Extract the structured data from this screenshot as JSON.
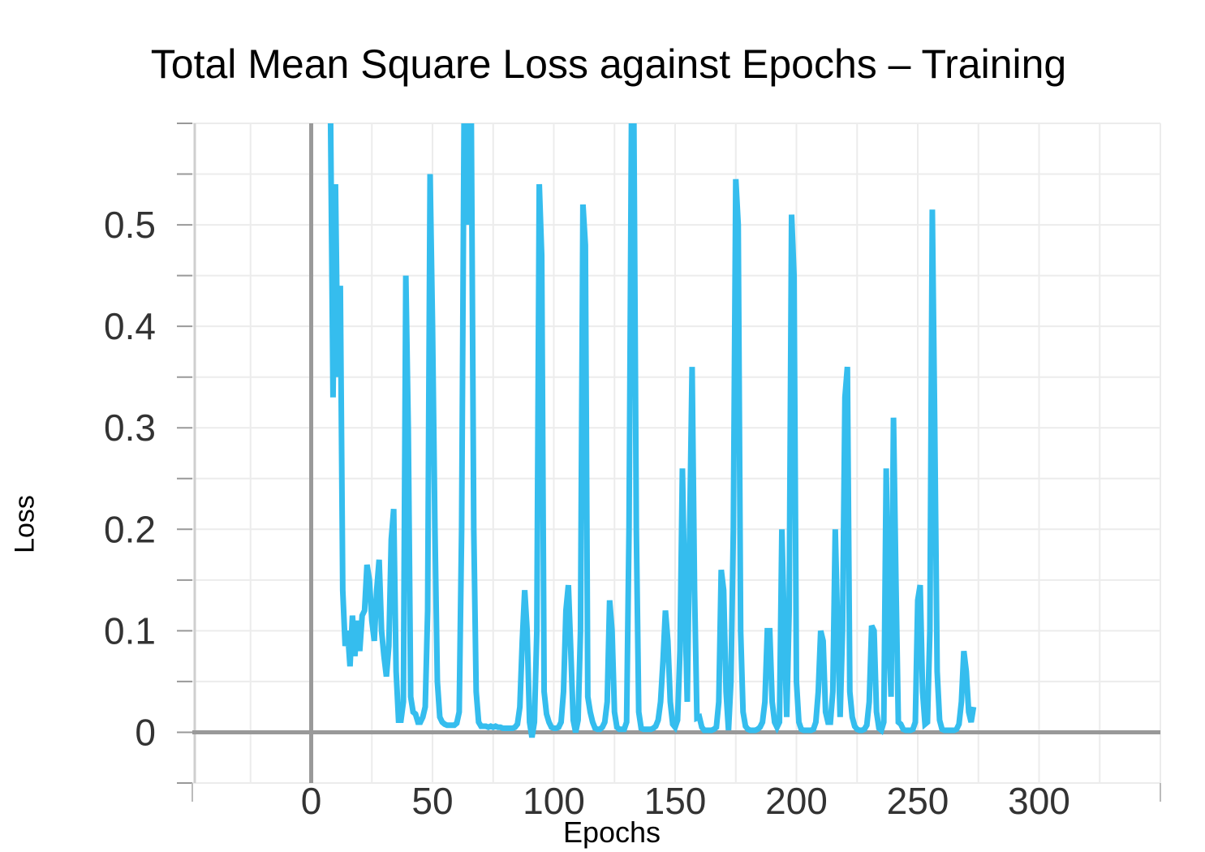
{
  "chart_data": {
    "type": "line",
    "title": "Total Mean Square Loss against Epochs – Training",
    "xlabel": "Epochs",
    "ylabel": "Loss",
    "xlim": [
      -49,
      350
    ],
    "ylim": [
      -0.05,
      0.6
    ],
    "xticks": [
      0,
      50,
      100,
      150,
      200,
      250,
      300
    ],
    "xtick_labels": [
      "0",
      "50",
      "100",
      "150",
      "200",
      "250",
      "300"
    ],
    "yticks": [
      0,
      0.1,
      0.2,
      0.3,
      0.4,
      0.5
    ],
    "ytick_labels": [
      "0",
      "0.1",
      "0.2",
      "0.3",
      "0.4",
      "0.5"
    ],
    "grid": true,
    "series": [
      {
        "color": "#35bdee",
        "points": [
          [
            8,
            0.6
          ],
          [
            9,
            0.33
          ],
          [
            10,
            0.54
          ],
          [
            11,
            0.35
          ],
          [
            12,
            0.44
          ],
          [
            13,
            0.14
          ],
          [
            14,
            0.085
          ],
          [
            15,
            0.1
          ],
          [
            16,
            0.065
          ],
          [
            17,
            0.115
          ],
          [
            18,
            0.075
          ],
          [
            19,
            0.11
          ],
          [
            20,
            0.08
          ],
          [
            21,
            0.115
          ],
          [
            22,
            0.12
          ],
          [
            23,
            0.165
          ],
          [
            24,
            0.15
          ],
          [
            25,
            0.11
          ],
          [
            26,
            0.09
          ],
          [
            27,
            0.14
          ],
          [
            28,
            0.17
          ],
          [
            29,
            0.1
          ],
          [
            30,
            0.075
          ],
          [
            31,
            0.055
          ],
          [
            32,
            0.085
          ],
          [
            33,
            0.19
          ],
          [
            34,
            0.22
          ],
          [
            35,
            0.06
          ],
          [
            36,
            0.012
          ],
          [
            37,
            0.012
          ],
          [
            38,
            0.03
          ],
          [
            39,
            0.45
          ],
          [
            40,
            0.3
          ],
          [
            41,
            0.035
          ],
          [
            42,
            0.02
          ],
          [
            43,
            0.018
          ],
          [
            44,
            0.01
          ],
          [
            45,
            0.01
          ],
          [
            46,
            0.015
          ],
          [
            47,
            0.025
          ],
          [
            48,
            0.12
          ],
          [
            49,
            0.55
          ],
          [
            50,
            0.4
          ],
          [
            51,
            0.2
          ],
          [
            52,
            0.05
          ],
          [
            53,
            0.015
          ],
          [
            54,
            0.01
          ],
          [
            55,
            0.008
          ],
          [
            56,
            0.007
          ],
          [
            57,
            0.007
          ],
          [
            58,
            0.007
          ],
          [
            59,
            0.007
          ],
          [
            60,
            0.009
          ],
          [
            61,
            0.02
          ],
          [
            62,
            0.2
          ],
          [
            63,
            0.6
          ],
          [
            64,
            0.6
          ],
          [
            65,
            0.5
          ],
          [
            66,
            0.6
          ],
          [
            67,
            0.2
          ],
          [
            68,
            0.04
          ],
          [
            69,
            0.01
          ],
          [
            70,
            0.006
          ],
          [
            71,
            0.006
          ],
          [
            72,
            0.006
          ],
          [
            73,
            0.005
          ],
          [
            74,
            0.006
          ],
          [
            75,
            0.005
          ],
          [
            76,
            0.006
          ],
          [
            77,
            0.005
          ],
          [
            78,
            0.005
          ],
          [
            79,
            0.004
          ],
          [
            80,
            0.004
          ],
          [
            81,
            0.004
          ],
          [
            82,
            0.004
          ],
          [
            83,
            0.004
          ],
          [
            84,
            0.005
          ],
          [
            85,
            0.008
          ],
          [
            86,
            0.025
          ],
          [
            87,
            0.09
          ],
          [
            88,
            0.14
          ],
          [
            89,
            0.1
          ],
          [
            90,
            0.01
          ],
          [
            91,
            -0.005
          ],
          [
            92,
            0.01
          ],
          [
            93,
            0.1
          ],
          [
            94,
            0.54
          ],
          [
            95,
            0.47
          ],
          [
            96,
            0.04
          ],
          [
            97,
            0.018
          ],
          [
            98,
            0.01
          ],
          [
            99,
            0.005
          ],
          [
            100,
            0.004
          ],
          [
            101,
            0.004
          ],
          [
            102,
            0.005
          ],
          [
            103,
            0.01
          ],
          [
            104,
            0.04
          ],
          [
            105,
            0.12
          ],
          [
            106,
            0.145
          ],
          [
            107,
            0.08
          ],
          [
            108,
            0.012
          ],
          [
            109,
            0.0
          ],
          [
            110,
            0.012
          ],
          [
            111,
            0.1
          ],
          [
            112,
            0.52
          ],
          [
            113,
            0.48
          ],
          [
            114,
            0.035
          ],
          [
            115,
            0.02
          ],
          [
            116,
            0.01
          ],
          [
            117,
            0.004
          ],
          [
            118,
            0.003
          ],
          [
            119,
            0.003
          ],
          [
            120,
            0.005
          ],
          [
            121,
            0.01
          ],
          [
            122,
            0.03
          ],
          [
            123,
            0.13
          ],
          [
            124,
            0.1
          ],
          [
            125,
            0.02
          ],
          [
            126,
            0.005
          ],
          [
            127,
            0.003
          ],
          [
            128,
            0.003
          ],
          [
            129,
            0.003
          ],
          [
            130,
            0.01
          ],
          [
            131,
            0.2
          ],
          [
            132,
            0.6
          ],
          [
            133,
            0.6
          ],
          [
            134,
            0.2
          ],
          [
            135,
            0.02
          ],
          [
            136,
            0.004
          ],
          [
            137,
            0.003
          ],
          [
            138,
            0.003
          ],
          [
            139,
            0.003
          ],
          [
            140,
            0.003
          ],
          [
            141,
            0.004
          ],
          [
            142,
            0.006
          ],
          [
            143,
            0.012
          ],
          [
            144,
            0.03
          ],
          [
            145,
            0.07
          ],
          [
            146,
            0.12
          ],
          [
            147,
            0.09
          ],
          [
            148,
            0.03
          ],
          [
            149,
            0.008
          ],
          [
            150,
            0.005
          ],
          [
            151,
            0.012
          ],
          [
            152,
            0.08
          ],
          [
            153,
            0.26
          ],
          [
            154,
            0.13
          ],
          [
            155,
            0.03
          ],
          [
            156,
            0.2
          ],
          [
            157,
            0.36
          ],
          [
            158,
            0.14
          ],
          [
            159,
            0.014
          ],
          [
            160,
            0.015
          ],
          [
            161,
            0.005
          ],
          [
            162,
            0.002
          ],
          [
            163,
            0.002
          ],
          [
            164,
            0.002
          ],
          [
            165,
            0.002
          ],
          [
            166,
            0.003
          ],
          [
            167,
            0.005
          ],
          [
            168,
            0.03
          ],
          [
            169,
            0.16
          ],
          [
            170,
            0.14
          ],
          [
            171,
            0.04
          ],
          [
            172,
            0.002
          ],
          [
            173,
            0.05
          ],
          [
            174,
            0.2
          ],
          [
            175,
            0.545
          ],
          [
            176,
            0.5
          ],
          [
            177,
            0.1
          ],
          [
            178,
            0.02
          ],
          [
            179,
            0.006
          ],
          [
            180,
            0.003
          ],
          [
            181,
            0.002
          ],
          [
            182,
            0.002
          ],
          [
            183,
            0.002
          ],
          [
            184,
            0.003
          ],
          [
            185,
            0.005
          ],
          [
            186,
            0.01
          ],
          [
            187,
            0.03
          ],
          [
            188,
            0.1
          ],
          [
            189,
            0.1
          ],
          [
            190,
            0.03
          ],
          [
            191,
            0.01
          ],
          [
            192,
            0.005
          ],
          [
            193,
            0.01
          ],
          [
            194,
            0.2
          ],
          [
            195,
            0.1
          ],
          [
            196,
            0.015
          ],
          [
            197,
            0.12
          ],
          [
            198,
            0.51
          ],
          [
            199,
            0.45
          ],
          [
            200,
            0.05
          ],
          [
            201,
            0.01
          ],
          [
            202,
            0.003
          ],
          [
            203,
            0.002
          ],
          [
            204,
            0.002
          ],
          [
            205,
            0.002
          ],
          [
            206,
            0.002
          ],
          [
            207,
            0.003
          ],
          [
            208,
            0.01
          ],
          [
            209,
            0.04
          ],
          [
            210,
            0.1
          ],
          [
            211,
            0.09
          ],
          [
            212,
            0.02
          ],
          [
            213,
            0.01
          ],
          [
            214,
            0.01
          ],
          [
            215,
            0.04
          ],
          [
            216,
            0.2
          ],
          [
            217,
            0.1
          ],
          [
            218,
            0.015
          ],
          [
            219,
            0.1
          ],
          [
            220,
            0.33
          ],
          [
            221,
            0.36
          ],
          [
            222,
            0.04
          ],
          [
            223,
            0.015
          ],
          [
            224,
            0.006
          ],
          [
            225,
            0.003
          ],
          [
            226,
            0.002
          ],
          [
            227,
            0.002
          ],
          [
            228,
            0.003
          ],
          [
            229,
            0.007
          ],
          [
            230,
            0.03
          ],
          [
            231,
            0.105
          ],
          [
            232,
            0.1
          ],
          [
            233,
            0.02
          ],
          [
            234,
            0.004
          ],
          [
            235,
            0.002
          ],
          [
            236,
            0.01
          ],
          [
            237,
            0.26
          ],
          [
            238,
            0.1
          ],
          [
            239,
            0.035
          ],
          [
            240,
            0.31
          ],
          [
            241,
            0.15
          ],
          [
            242,
            0.01
          ],
          [
            243,
            0.008
          ],
          [
            244,
            0.003
          ],
          [
            245,
            0.002
          ],
          [
            246,
            0.002
          ],
          [
            247,
            0.002
          ],
          [
            248,
            0.003
          ],
          [
            249,
            0.01
          ],
          [
            250,
            0.13
          ],
          [
            251,
            0.145
          ],
          [
            252,
            0.04
          ],
          [
            253,
            0.008
          ],
          [
            254,
            0.01
          ],
          [
            255,
            0.1
          ],
          [
            256,
            0.515
          ],
          [
            257,
            0.3
          ],
          [
            258,
            0.06
          ],
          [
            259,
            0.012
          ],
          [
            260,
            0.003
          ],
          [
            261,
            0.002
          ],
          [
            262,
            0.002
          ],
          [
            263,
            0.002
          ],
          [
            264,
            0.002
          ],
          [
            265,
            0.002
          ],
          [
            266,
            0.003
          ],
          [
            267,
            0.008
          ],
          [
            268,
            0.03
          ],
          [
            269,
            0.08
          ],
          [
            270,
            0.06
          ],
          [
            271,
            0.02
          ],
          [
            272,
            0.01
          ],
          [
            273,
            0.025
          ]
        ]
      }
    ]
  }
}
